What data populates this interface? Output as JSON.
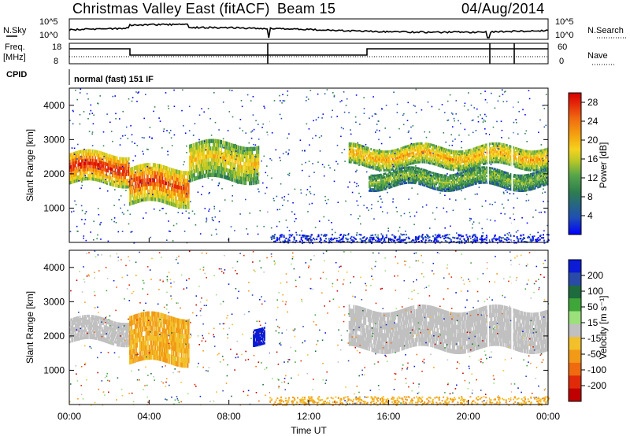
{
  "header": {
    "station_title": "Christmas Valley East (fitACF)",
    "beam": "Beam 15",
    "date": "04/Aug/2014"
  },
  "noise_panel": {
    "left_label": "N.Sky",
    "right_label": "N.Search",
    "left_ticks": [
      "10^5",
      "10^0"
    ],
    "right_ticks": [
      "10^5",
      "10^0"
    ]
  },
  "freq_panel": {
    "left_label_1": "Freq.",
    "left_label_2": "[MHz]",
    "right_label": "Nave",
    "left_ticks": [
      "18",
      "8"
    ],
    "right_ticks": [
      "60",
      "0"
    ]
  },
  "cpid": {
    "label": "CPID",
    "value": "normal (fast) 151 IF"
  },
  "colors": {
    "power_scale": [
      "#0000ff",
      "#1f4fb3",
      "#2e7d4f",
      "#58a64a",
      "#b9c826",
      "#f5d21f",
      "#f5a30f",
      "#f06a10",
      "#e52a0a",
      "#d40000"
    ],
    "velocity_scale": [
      "#0b1bd6",
      "#2a4aa8",
      "#1e6b3e",
      "#3fa63a",
      "#9be07a",
      "#c0c0c0",
      "#f2c02a",
      "#f29a18",
      "#f06a10",
      "#e02a0a",
      "#c00000"
    ]
  },
  "chart_data": [
    {
      "type": "heatmap",
      "panel": "power",
      "ylabel": "Slant Range [km]",
      "yticks": [
        "1000",
        "2000",
        "3000",
        "4000"
      ],
      "ylim": [
        0,
        4500
      ],
      "xlim": [
        "00:00",
        "24:00"
      ],
      "colorbar": {
        "label": "Power [dB]",
        "ticks": [
          "4",
          "8",
          "12",
          "16",
          "20",
          "24",
          "28"
        ],
        "range": [
          0,
          30
        ]
      },
      "bands": [
        {
          "t_start": 0.0,
          "t_end": 3.0,
          "r_low": 1700,
          "r_high": 2600,
          "level": 28
        },
        {
          "t_start": 3.0,
          "t_end": 6.0,
          "r_low": 1100,
          "r_high": 2200,
          "level": 26
        },
        {
          "t_start": 6.0,
          "t_end": 9.5,
          "r_low": 1800,
          "r_high": 2900,
          "level": 18
        },
        {
          "t_start": 14.0,
          "t_end": 24.0,
          "r_low": 2200,
          "r_high": 2800,
          "level": 20
        },
        {
          "t_start": 15.0,
          "t_end": 24.0,
          "r_low": 1600,
          "r_high": 2100,
          "level": 12
        }
      ]
    },
    {
      "type": "heatmap",
      "panel": "velocity",
      "ylabel": "Slant Range [km]",
      "yticks": [
        "1000",
        "2000",
        "3000",
        "4000"
      ],
      "ylim": [
        0,
        4500
      ],
      "xlim": [
        "00:00",
        "24:00"
      ],
      "xlabel": "Time UT",
      "xticks": [
        "00:00",
        "04:00",
        "08:00",
        "12:00",
        "16:00",
        "20:00",
        "00:00"
      ],
      "colorbar": {
        "label": "Velocity [m s⁻¹]",
        "ticks": [
          "200",
          "100",
          "50",
          "15",
          "-15",
          "-50",
          "-100",
          "-200"
        ],
        "range": [
          -250,
          250
        ]
      },
      "bands": [
        {
          "t_start": 0.0,
          "t_end": 3.0,
          "r_low": 1800,
          "r_high": 2500,
          "velocity": 0
        },
        {
          "t_start": 3.0,
          "t_end": 6.0,
          "r_low": 1200,
          "r_high": 2600,
          "velocity": -50
        },
        {
          "t_start": 9.2,
          "t_end": 9.8,
          "r_low": 1800,
          "r_high": 2300,
          "velocity": 200
        },
        {
          "t_start": 14.0,
          "t_end": 24.0,
          "r_low": 1600,
          "r_high": 2800,
          "velocity": 0
        }
      ]
    }
  ]
}
